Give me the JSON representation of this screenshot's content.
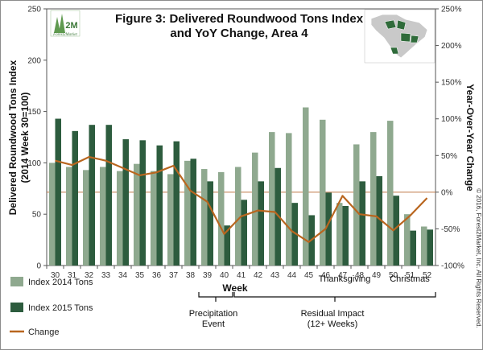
{
  "chart_data": {
    "type": "bar",
    "title": "Figure 3: Delivered Roundwood Tons Index",
    "subtitle": "and YoY Change, Area 4",
    "xlabel": "Week",
    "ylabel": "Delivered Roundwood Tons Index",
    "ylabel_sub": "(2014 Week 30=100)",
    "y2label": "Year-Over-Year Change",
    "ylim": [
      0,
      250
    ],
    "yticks": [
      "0",
      "50",
      "100",
      "150",
      "200",
      "250"
    ],
    "y2lim": [
      -100,
      250
    ],
    "y2ticks": [
      "-100%",
      "-50%",
      "0%",
      "50%",
      "100%",
      "150%",
      "200%",
      "250%"
    ],
    "categories": [
      "30",
      "31",
      "32",
      "33",
      "34",
      "35",
      "36",
      "37",
      "38",
      "39",
      "40",
      "41",
      "42",
      "43",
      "44",
      "45",
      "46",
      "47",
      "48",
      "49",
      "50",
      "51",
      "52"
    ],
    "series": [
      {
        "name": "Index 2014 Tons",
        "type": "bar",
        "color": "#8fa98f",
        "values": [
          100,
          96,
          93,
          96,
          92,
          99,
          92,
          89,
          102,
          94,
          91,
          96,
          110,
          130,
          129,
          154,
          142,
          61,
          118,
          130,
          141,
          50,
          38
        ]
      },
      {
        "name": "Index 2015 Tons",
        "type": "bar",
        "color": "#2d5c3e",
        "values": [
          143,
          131,
          137,
          137,
          123,
          122,
          117,
          121,
          104,
          82,
          39,
          64,
          82,
          95,
          61,
          49,
          71,
          58,
          82,
          87,
          68,
          34,
          35
        ]
      },
      {
        "name": "Change",
        "type": "line",
        "axis": "y2",
        "color": "#b9661f",
        "values": [
          43,
          37,
          48,
          43,
          33,
          23,
          27,
          36,
          2,
          -13,
          -57,
          -33,
          -25,
          -27,
          -53,
          -68,
          -50,
          -5,
          -30,
          -33,
          -52,
          -32,
          -8
        ]
      }
    ],
    "reference_line": {
      "axis": "y2",
      "value": 0,
      "color": "#c07a4a"
    },
    "legend": {
      "placement": "bottom-left"
    },
    "annotations": [
      {
        "label": "Thanksgiving"
      },
      {
        "label": "Christmas"
      },
      {
        "label": "Precipitation",
        "label2": "Event"
      },
      {
        "label": "Residual Impact",
        "label2": "(12+ Weeks)"
      }
    ],
    "copyright": "© 2016, Forest2Market, Inc. All Rights Reserved.",
    "grid": false
  },
  "logo": {
    "text": "2M",
    "brand": "Forest2Market",
    "color": "#3e7a3a"
  },
  "inset_map": {
    "region": "South Carolina",
    "highlight_color": "#2f6b3a",
    "base_color": "#c9c9c9"
  }
}
